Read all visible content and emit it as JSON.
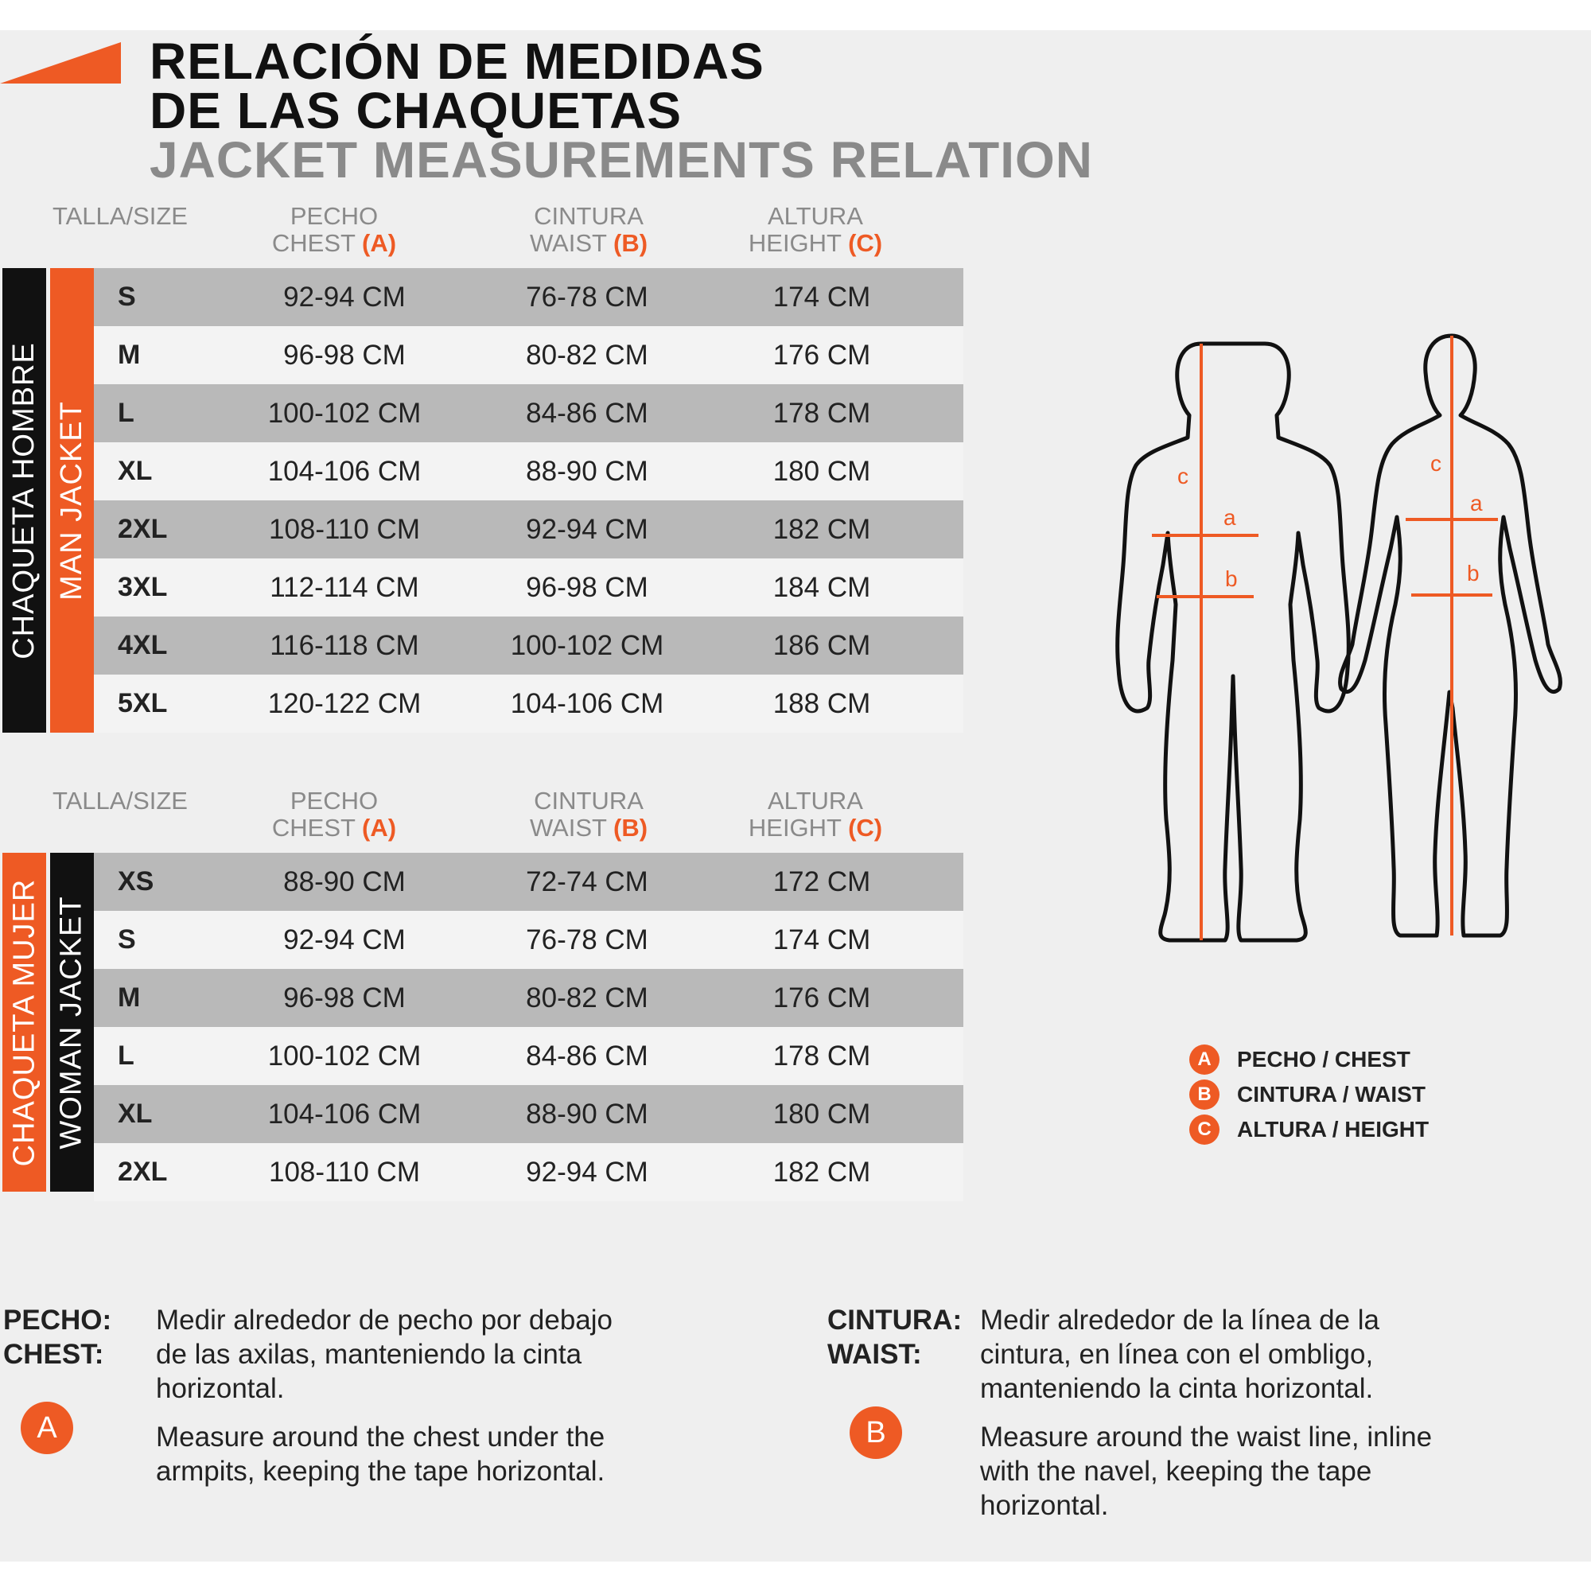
{
  "title": {
    "es_line1": "RELACIÓN DE MEDIDAS",
    "es_line2": "DE LAS CHAQUETAS",
    "en": "JACKET MEASUREMENTS RELATION"
  },
  "headers": {
    "size": "TALLA/SIZE",
    "chest_es": "PECHO",
    "chest_en": "CHEST",
    "chest_code": "(A)",
    "waist_es": "CINTURA",
    "waist_en": "WAIST",
    "waist_code": "(B)",
    "height_es": "ALTURA",
    "height_en": "HEIGHT",
    "height_code": "(C)"
  },
  "men": {
    "label_es": "CHAQUETA HOMBRE",
    "label_en": "MAN JACKET",
    "rows": [
      {
        "size": "S",
        "chest": "92-94 CM",
        "waist": "76-78 CM",
        "height": "174 CM"
      },
      {
        "size": "M",
        "chest": "96-98 CM",
        "waist": "80-82 CM",
        "height": "176 CM"
      },
      {
        "size": "L",
        "chest": "100-102 CM",
        "waist": "84-86 CM",
        "height": "178 CM"
      },
      {
        "size": "XL",
        "chest": "104-106 CM",
        "waist": "88-90 CM",
        "height": "180 CM"
      },
      {
        "size": "2XL",
        "chest": "108-110 CM",
        "waist": "92-94 CM",
        "height": "182 CM"
      },
      {
        "size": "3XL",
        "chest": "112-114 CM",
        "waist": "96-98 CM",
        "height": "184 CM"
      },
      {
        "size": "4XL",
        "chest": "116-118 CM",
        "waist": "100-102 CM",
        "height": "186 CM"
      },
      {
        "size": "5XL",
        "chest": "120-122 CM",
        "waist": "104-106 CM",
        "height": "188 CM"
      }
    ]
  },
  "women": {
    "label_es": "CHAQUETA MUJER",
    "label_en": "WOMAN JACKET",
    "rows": [
      {
        "size": "XS",
        "chest": "88-90 CM",
        "waist": "72-74 CM",
        "height": "172 CM"
      },
      {
        "size": "S",
        "chest": "92-94 CM",
        "waist": "76-78 CM",
        "height": "174 CM"
      },
      {
        "size": "M",
        "chest": "96-98 CM",
        "waist": "80-82 CM",
        "height": "176 CM"
      },
      {
        "size": "L",
        "chest": "100-102 CM",
        "waist": "84-86 CM",
        "height": "178 CM"
      },
      {
        "size": "XL",
        "chest": "104-106 CM",
        "waist": "88-90 CM",
        "height": "180 CM"
      },
      {
        "size": "2XL",
        "chest": "108-110 CM",
        "waist": "92-94 CM",
        "height": "182 CM"
      }
    ]
  },
  "figure_labels": {
    "a": "a",
    "b": "b",
    "c": "c"
  },
  "legend": [
    {
      "badge": "A",
      "text": "PECHO / CHEST"
    },
    {
      "badge": "B",
      "text": "CINTURA / WAIST"
    },
    {
      "badge": "C",
      "text": "ALTURA / HEIGHT"
    }
  ],
  "notes": {
    "chest": {
      "label_es": "PECHO:",
      "label_en": "CHEST:",
      "badge": "A",
      "text_es": "Medir alrededor de pecho por debajo de las axilas, manteniendo la cinta horizontal.",
      "text_en": "Measure around the chest under the armpits, keeping the tape horizontal."
    },
    "waist": {
      "label_es": "CINTURA:",
      "label_en": "WAIST:",
      "badge": "B",
      "text_es": "Medir alrededor de la línea de la cintura, en línea con el ombligo, manteniendo la cinta horizontal.",
      "text_en": "Measure around the waist line, inline with the navel, keeping the tape horizontal."
    }
  },
  "colors": {
    "accent": "#ee5a24",
    "black": "#111111",
    "row_dark": "#b9b9b9",
    "row_light": "#f3f3f3",
    "background": "#efefef"
  }
}
